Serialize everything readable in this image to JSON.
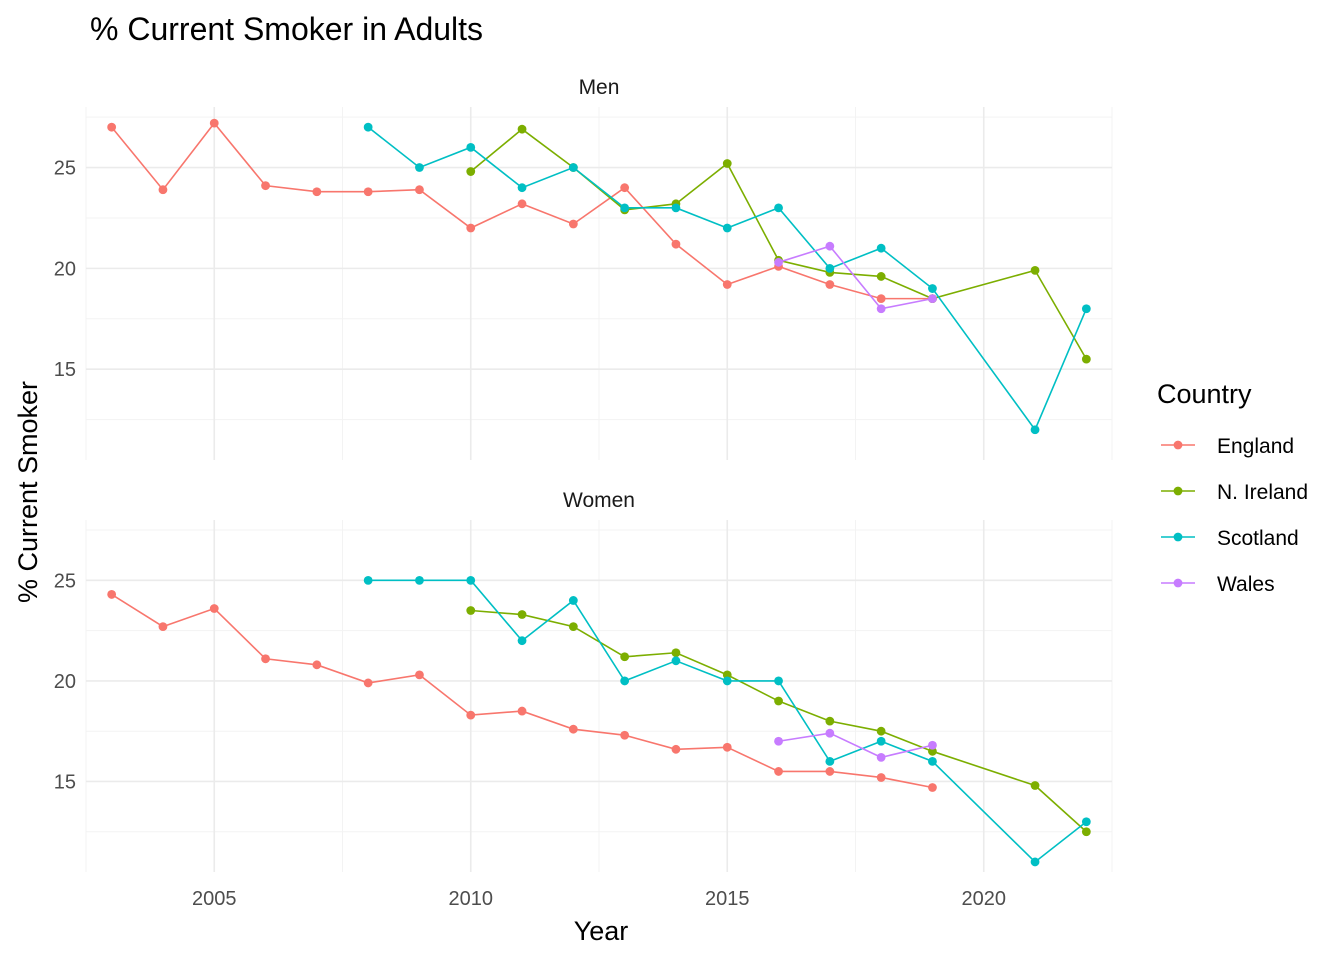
{
  "chart_data": {
    "type": "line",
    "title": "% Current Smoker in Adults",
    "xlabel": "Year",
    "ylabel": "% Current Smoker",
    "xlim": [
      2002.5,
      2022.5
    ],
    "ylim": [
      10.5,
      28
    ],
    "x_ticks": [
      2005,
      2010,
      2015,
      2020
    ],
    "y_ticks": [
      15,
      20,
      25
    ],
    "grid": true,
    "legend": {
      "title": "Country",
      "placement": "right"
    },
    "series_meta": [
      {
        "name": "England",
        "color": "#F8766D"
      },
      {
        "name": "N. Ireland",
        "color": "#7CAE00"
      },
      {
        "name": "Scotland",
        "color": "#00BFC4"
      },
      {
        "name": "Wales",
        "color": "#C77CFF"
      }
    ],
    "panels": [
      {
        "label": "Men",
        "series": [
          {
            "name": "England",
            "points": [
              [
                2003,
                27.0
              ],
              [
                2004,
                23.9
              ],
              [
                2005,
                27.2
              ],
              [
                2006,
                24.1
              ],
              [
                2007,
                23.8
              ],
              [
                2008,
                23.8
              ],
              [
                2009,
                23.9
              ],
              [
                2010,
                22.0
              ],
              [
                2011,
                23.2
              ],
              [
                2012,
                22.2
              ],
              [
                2013,
                24.0
              ],
              [
                2014,
                21.2
              ],
              [
                2015,
                19.2
              ],
              [
                2016,
                20.1
              ],
              [
                2017,
                19.2
              ],
              [
                2018,
                18.5
              ],
              [
                2019,
                18.5
              ]
            ]
          },
          {
            "name": "N. Ireland",
            "points": [
              [
                2010,
                24.8
              ],
              [
                2011,
                26.9
              ],
              [
                2012,
                25.0
              ],
              [
                2013,
                22.9
              ],
              [
                2014,
                23.2
              ],
              [
                2015,
                25.2
              ],
              [
                2016,
                20.4
              ],
              [
                2017,
                19.8
              ],
              [
                2018,
                19.6
              ],
              [
                2019,
                18.5
              ],
              [
                2021,
                19.9
              ],
              [
                2022,
                15.5
              ]
            ]
          },
          {
            "name": "Scotland",
            "points": [
              [
                2008,
                27.0
              ],
              [
                2009,
                25.0
              ],
              [
                2010,
                26.0
              ],
              [
                2011,
                24.0
              ],
              [
                2012,
                25.0
              ],
              [
                2013,
                23.0
              ],
              [
                2014,
                23.0
              ],
              [
                2015,
                22.0
              ],
              [
                2016,
                23.0
              ],
              [
                2017,
                20.0
              ],
              [
                2018,
                21.0
              ],
              [
                2019,
                19.0
              ],
              [
                2021,
                12.0
              ],
              [
                2022,
                18.0
              ]
            ]
          },
          {
            "name": "Wales",
            "points": [
              [
                2016,
                20.3
              ],
              [
                2017,
                21.1
              ],
              [
                2018,
                18.0
              ],
              [
                2019,
                18.5
              ]
            ]
          }
        ]
      },
      {
        "label": "Women",
        "series": [
          {
            "name": "England",
            "points": [
              [
                2003,
                24.3
              ],
              [
                2004,
                22.7
              ],
              [
                2005,
                23.6
              ],
              [
                2006,
                21.1
              ],
              [
                2007,
                20.8
              ],
              [
                2008,
                19.9
              ],
              [
                2009,
                20.3
              ],
              [
                2010,
                18.3
              ],
              [
                2011,
                18.5
              ],
              [
                2012,
                17.6
              ],
              [
                2013,
                17.3
              ],
              [
                2014,
                16.6
              ],
              [
                2015,
                16.7
              ],
              [
                2016,
                15.5
              ],
              [
                2017,
                15.5
              ],
              [
                2018,
                15.2
              ],
              [
                2019,
                14.7
              ]
            ]
          },
          {
            "name": "N. Ireland",
            "points": [
              [
                2010,
                23.5
              ],
              [
                2011,
                23.3
              ],
              [
                2012,
                22.7
              ],
              [
                2013,
                21.2
              ],
              [
                2014,
                21.4
              ],
              [
                2015,
                20.3
              ],
              [
                2016,
                19.0
              ],
              [
                2017,
                18.0
              ],
              [
                2018,
                17.5
              ],
              [
                2019,
                16.5
              ],
              [
                2021,
                14.8
              ],
              [
                2022,
                12.5
              ]
            ]
          },
          {
            "name": "Scotland",
            "points": [
              [
                2008,
                25.0
              ],
              [
                2009,
                25.0
              ],
              [
                2010,
                25.0
              ],
              [
                2011,
                22.0
              ],
              [
                2012,
                24.0
              ],
              [
                2013,
                20.0
              ],
              [
                2014,
                21.0
              ],
              [
                2015,
                20.0
              ],
              [
                2016,
                20.0
              ],
              [
                2017,
                16.0
              ],
              [
                2018,
                17.0
              ],
              [
                2019,
                16.0
              ],
              [
                2021,
                11.0
              ],
              [
                2022,
                13.0
              ]
            ]
          },
          {
            "name": "Wales",
            "points": [
              [
                2016,
                17.0
              ],
              [
                2017,
                17.4
              ],
              [
                2018,
                16.2
              ],
              [
                2019,
                16.8
              ]
            ]
          }
        ]
      }
    ]
  }
}
